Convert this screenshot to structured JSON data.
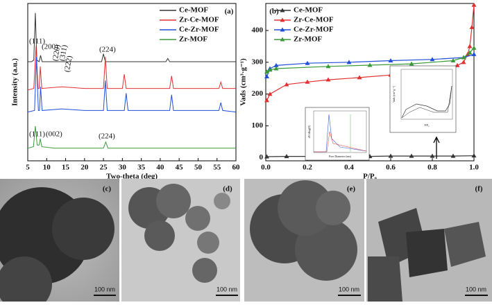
{
  "chart_data": [
    {
      "type": "line",
      "label": "(a)",
      "xlabel": "Two-theta (deg)",
      "ylabel": "Intensity (a.u.)",
      "xlim": [
        5,
        60
      ],
      "xticks": [
        5,
        10,
        15,
        20,
        25,
        30,
        35,
        40,
        45,
        50,
        55,
        60
      ],
      "ylim": [
        0,
        100
      ],
      "legend": "upper right",
      "markers": false,
      "annotations": [
        "(111)",
        "(200)",
        "(220)",
        "(311)",
        "(222)",
        "(224)",
        "(111)",
        "(002)",
        "(224)"
      ],
      "series": [
        {
          "name": "Ce-MOF",
          "color": "#333333",
          "x": [
            5,
            6,
            6.6,
            7,
            7.4,
            8,
            8.4,
            8.8,
            12,
            20,
            24.5,
            25,
            25.5,
            30,
            41.5,
            42,
            42.5,
            48,
            55,
            60
          ],
          "values": [
            63,
            63,
            64,
            94,
            64,
            63,
            67,
            63,
            63,
            63,
            63,
            68,
            63,
            63,
            63,
            65,
            63,
            63,
            63,
            63
          ]
        },
        {
          "name": "Zr-Ce-MOF",
          "color": "#e03030",
          "x": [
            5,
            6.6,
            7.2,
            7.7,
            8,
            8.3,
            8.7,
            14,
            20,
            25,
            25.5,
            26,
            30,
            30.5,
            31,
            42.5,
            43,
            43.5,
            55.5,
            56,
            56.5,
            60
          ],
          "values": [
            45,
            46,
            73,
            46,
            46,
            60,
            46,
            47,
            46,
            46,
            66,
            46,
            46,
            55,
            46,
            46,
            54,
            46,
            46,
            50,
            46,
            46
          ]
        },
        {
          "name": "Ce-Zr-MOF",
          "color": "#1f4fd8",
          "x": [
            5,
            6.8,
            7.3,
            7.8,
            8.1,
            8.4,
            8.8,
            14,
            20,
            25,
            25.5,
            26,
            30.5,
            31,
            31.5,
            42.5,
            43,
            43.5,
            55.5,
            56,
            56.5,
            60
          ],
          "values": [
            31,
            32,
            66,
            32,
            32,
            47,
            32,
            33,
            32,
            32,
            51,
            32,
            32,
            43,
            32,
            32,
            42,
            32,
            32,
            37,
            32,
            31
          ]
        },
        {
          "name": "Zr-MOF",
          "color": "#3a9a3a",
          "x": [
            5,
            6.5,
            7,
            7.5,
            8,
            8.3,
            8.7,
            12,
            25,
            25.6,
            26.2,
            40,
            60
          ],
          "values": [
            8,
            9,
            22,
            10,
            10,
            14,
            9,
            8,
            8,
            12,
            8,
            8,
            8
          ]
        }
      ]
    },
    {
      "type": "line",
      "label": "(b)",
      "xlabel": "P/P₀",
      "ylabel": "Vads (cm³·g⁻¹)",
      "xlim": [
        0,
        1
      ],
      "xticks": [
        {
          "value": 0,
          "label": "0.0"
        },
        0.2,
        0.4,
        0.6,
        0.8,
        {
          "value": 1,
          "label": "1.0"
        }
      ],
      "ylim": [
        -10,
        485
      ],
      "yticks": [
        0,
        100,
        200,
        300,
        400
      ],
      "legend": "upper left",
      "markers": true,
      "series": [
        {
          "name": "Ce-MOF",
          "color": "#333333",
          "x": [
            0.005,
            0.1,
            0.2,
            0.3,
            0.4,
            0.5,
            0.6,
            0.7,
            0.8,
            0.9,
            1
          ],
          "values": [
            3,
            4,
            4,
            4,
            4,
            4,
            5,
            5,
            5,
            5,
            6
          ]
        },
        {
          "name": "Zr-Ce-MOF",
          "color": "#e03030",
          "x": [
            0.005,
            0.02,
            0.1,
            0.2,
            0.3,
            0.45,
            0.6,
            0.75,
            0.85,
            0.92,
            0.95,
            0.97,
            0.98,
            0.99,
            1
          ],
          "values": [
            180,
            200,
            230,
            238,
            245,
            252,
            260,
            270,
            280,
            290,
            300,
            325,
            350,
            410,
            480
          ]
        },
        {
          "name": "Ce-Zr-MOF",
          "color": "#1f4fd8",
          "x": [
            0.005,
            0.02,
            0.05,
            0.2,
            0.4,
            0.6,
            0.8,
            0.95,
            1
          ],
          "values": [
            255,
            280,
            290,
            297,
            300,
            305,
            309,
            315,
            325
          ]
        },
        {
          "name": "Zr-MOF",
          "color": "#3a9a3a",
          "x": [
            0.005,
            0.02,
            0.05,
            0.3,
            0.5,
            0.7,
            0.9,
            0.95,
            0.98,
            1
          ],
          "values": [
            270,
            276,
            280,
            287,
            291,
            295,
            305,
            315,
            330,
            345
          ]
        }
      ]
    }
  ],
  "insets": {
    "pore_xlabel": "Pore Diameter (nm)",
    "pore_ylabel": "dV/dlog(D)",
    "iso_xlabel": "P/P₀",
    "iso_ylabel": "Vads (cm³ g⁻¹)"
  },
  "images": [
    {
      "label": "(c)",
      "scale": "100 nm"
    },
    {
      "label": "(d)",
      "scale": "100 nm"
    },
    {
      "label": "(e)",
      "scale": "100 nm"
    },
    {
      "label": "(f)",
      "scale": "100 nm"
    }
  ]
}
